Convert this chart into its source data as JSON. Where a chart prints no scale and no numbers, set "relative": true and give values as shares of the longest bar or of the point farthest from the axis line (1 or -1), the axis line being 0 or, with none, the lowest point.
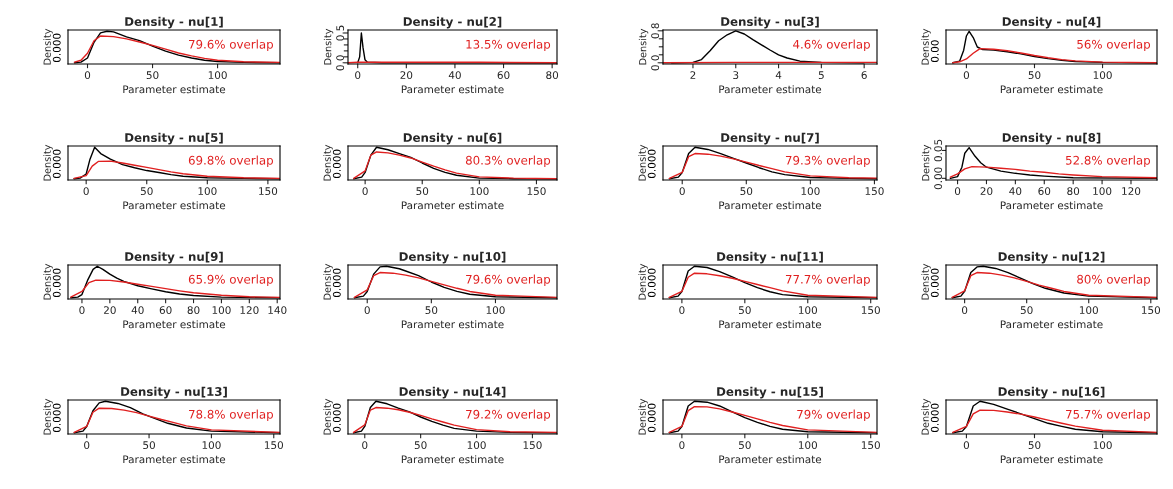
{
  "chart_data": [
    {
      "type": "line",
      "title": "Density - nu[1]",
      "xlabel": "Parameter estimate",
      "ylabel": "Density",
      "relative": true,
      "xlim": [
        -15,
        148
      ],
      "xticks": [
        0,
        50,
        100
      ],
      "annotations": [
        "0.000",
        "79.6% overlap"
      ],
      "series": [
        {
          "color": "#000000",
          "x": [
            -10,
            -5,
            0,
            5,
            10,
            15,
            20,
            25,
            30,
            40,
            50,
            60,
            70,
            80,
            90,
            100,
            120,
            148
          ],
          "values": [
            0,
            0.02,
            0.15,
            0.65,
            0.95,
            1.0,
            0.98,
            0.9,
            0.82,
            0.7,
            0.53,
            0.37,
            0.24,
            0.15,
            0.08,
            0.04,
            0.01,
            0
          ]
        },
        {
          "color": "#e02020",
          "x": [
            -10,
            -5,
            0,
            5,
            10,
            20,
            30,
            40,
            50,
            60,
            70,
            80,
            90,
            100,
            120,
            148
          ],
          "values": [
            0.02,
            0.08,
            0.3,
            0.7,
            0.85,
            0.83,
            0.76,
            0.66,
            0.55,
            0.43,
            0.31,
            0.22,
            0.14,
            0.08,
            0.03,
            0.01
          ]
        }
      ]
    },
    {
      "type": "line",
      "title": "Density - nu[2]",
      "xlabel": "Parameter estimate",
      "ylabel": "Density",
      "xlim": [
        -4,
        82
      ],
      "xticks": [
        0,
        20,
        40,
        60,
        80
      ],
      "ylim": [
        -0.02,
        0.55
      ],
      "yticks": [
        {
          "value": 0,
          "label": "0.0"
        },
        {
          "value": 0.1,
          "label": null
        },
        {
          "value": 0.2,
          "label": null
        },
        {
          "value": 0.3,
          "label": null
        },
        {
          "value": 0.4,
          "label": null
        },
        {
          "value": 0.5,
          "label": "0.5"
        }
      ],
      "annotations": [
        "13.5% overlap"
      ],
      "series": [
        {
          "color": "#000000",
          "x": [
            0,
            0.8,
            1.5,
            2.2,
            3,
            4,
            10,
            82
          ],
          "values": [
            0,
            0.1,
            0.5,
            0.25,
            0.05,
            0.01,
            0,
            0
          ]
        },
        {
          "color": "#e02020",
          "x": [
            -4,
            0,
            10,
            30,
            50,
            82
          ],
          "values": [
            0.0,
            0.01,
            0.01,
            0.01,
            0.01,
            0.0
          ]
        }
      ]
    },
    {
      "type": "line",
      "title": "Density - nu[3]",
      "xlabel": "Parameter estimate",
      "ylabel": "Density",
      "xlim": [
        1.3,
        6.3
      ],
      "xticks": [
        2,
        3,
        4,
        5,
        6
      ],
      "ylim": [
        -0.03,
        0.82
      ],
      "yticks": [
        {
          "value": 0,
          "label": "0.0"
        },
        {
          "value": 0.2,
          "label": null
        },
        {
          "value": 0.4,
          "label": null
        },
        {
          "value": 0.6,
          "label": null
        },
        {
          "value": 0.8,
          "label": "0.8"
        }
      ],
      "annotations": [
        "4.6% overlap"
      ],
      "series": [
        {
          "color": "#000000",
          "x": [
            1.5,
            2,
            2.2,
            2.4,
            2.6,
            2.8,
            3.0,
            3.2,
            3.4,
            3.6,
            3.8,
            4.0,
            4.2,
            4.5,
            5,
            6
          ],
          "values": [
            0,
            0.01,
            0.08,
            0.3,
            0.55,
            0.7,
            0.8,
            0.72,
            0.58,
            0.45,
            0.32,
            0.2,
            0.12,
            0.04,
            0.01,
            0
          ]
        },
        {
          "color": "#e02020",
          "x": [
            1.3,
            3,
            4.5,
            6.3
          ],
          "values": [
            0.0,
            0.01,
            0.01,
            0.01
          ]
        }
      ]
    },
    {
      "type": "line",
      "title": "Density - nu[4]",
      "xlabel": "Parameter estimate",
      "ylabel": "Density",
      "relative": true,
      "xlim": [
        -15,
        140
      ],
      "xticks": [
        0,
        50,
        100
      ],
      "annotations": [
        "0.00",
        "56% overlap"
      ],
      "series": [
        {
          "color": "#000000",
          "x": [
            -10,
            -5,
            -2,
            0,
            2,
            5,
            8,
            12,
            20,
            30,
            40,
            50,
            60,
            70,
            80,
            100,
            140
          ],
          "values": [
            0,
            0.05,
            0.4,
            0.85,
            1.0,
            0.8,
            0.5,
            0.42,
            0.4,
            0.35,
            0.28,
            0.2,
            0.13,
            0.08,
            0.04,
            0.01,
            0
          ]
        },
        {
          "color": "#e02020",
          "x": [
            -10,
            -5,
            0,
            5,
            10,
            20,
            30,
            40,
            50,
            60,
            70,
            80,
            100,
            140
          ],
          "values": [
            0,
            0.03,
            0.12,
            0.3,
            0.45,
            0.43,
            0.38,
            0.31,
            0.23,
            0.16,
            0.1,
            0.06,
            0.02,
            0
          ]
        }
      ]
    },
    {
      "type": "line",
      "title": "Density - nu[5]",
      "xlabel": "Parameter estimate",
      "ylabel": "Density",
      "relative": true,
      "xlim": [
        -15,
        160
      ],
      "xticks": [
        0,
        50,
        100,
        150
      ],
      "annotations": [
        "0.000",
        "69.8% overlap"
      ],
      "series": [
        {
          "color": "#000000",
          "x": [
            -10,
            -5,
            0,
            3,
            7,
            12,
            20,
            30,
            40,
            50,
            60,
            70,
            80,
            100,
            130,
            160
          ],
          "values": [
            0,
            0.02,
            0.15,
            0.6,
            1.0,
            0.8,
            0.62,
            0.45,
            0.35,
            0.26,
            0.2,
            0.13,
            0.08,
            0.03,
            0.01,
            0
          ]
        },
        {
          "color": "#e02020",
          "x": [
            -10,
            0,
            5,
            10,
            20,
            30,
            40,
            50,
            60,
            70,
            80,
            100,
            130,
            160
          ],
          "values": [
            0.01,
            0.1,
            0.4,
            0.55,
            0.56,
            0.5,
            0.43,
            0.36,
            0.29,
            0.22,
            0.16,
            0.08,
            0.03,
            0.01
          ]
        }
      ]
    },
    {
      "type": "line",
      "title": "Density - nu[6]",
      "xlabel": "Parameter estimate",
      "ylabel": "Density",
      "relative": true,
      "xlim": [
        -15,
        168
      ],
      "xticks": [
        0,
        50,
        100,
        150
      ],
      "annotations": [
        "0.000",
        "80.3% overlap"
      ],
      "series": [
        {
          "color": "#000000",
          "x": [
            -10,
            -3,
            0,
            5,
            10,
            20,
            30,
            40,
            50,
            60,
            70,
            80,
            100,
            130,
            168
          ],
          "values": [
            0,
            0.05,
            0.2,
            0.75,
            1.0,
            0.92,
            0.8,
            0.68,
            0.5,
            0.33,
            0.2,
            0.11,
            0.02,
            0,
            0
          ]
        },
        {
          "color": "#e02020",
          "x": [
            -10,
            0,
            5,
            10,
            20,
            30,
            40,
            50,
            60,
            70,
            80,
            100,
            130,
            168
          ],
          "values": [
            0.01,
            0.25,
            0.75,
            0.85,
            0.82,
            0.75,
            0.66,
            0.53,
            0.4,
            0.28,
            0.18,
            0.06,
            0.02,
            0
          ]
        }
      ]
    },
    {
      "type": "line",
      "title": "Density - nu[7]",
      "xlabel": "Parameter estimate",
      "ylabel": "Density",
      "relative": true,
      "xlim": [
        -15,
        152
      ],
      "xticks": [
        0,
        50,
        100,
        150
      ],
      "annotations": [
        "0.000",
        "79.3% overlap"
      ],
      "series": [
        {
          "color": "#000000",
          "x": [
            -10,
            -3,
            0,
            5,
            10,
            20,
            30,
            40,
            50,
            60,
            70,
            80,
            100,
            130,
            152
          ],
          "values": [
            0,
            0.05,
            0.2,
            0.8,
            1.0,
            0.93,
            0.8,
            0.65,
            0.5,
            0.35,
            0.22,
            0.13,
            0.04,
            0.01,
            0
          ]
        },
        {
          "color": "#e02020",
          "x": [
            -10,
            0,
            5,
            10,
            20,
            30,
            40,
            50,
            60,
            70,
            80,
            100,
            130,
            152
          ],
          "values": [
            0.01,
            0.2,
            0.7,
            0.8,
            0.78,
            0.72,
            0.63,
            0.53,
            0.42,
            0.32,
            0.22,
            0.09,
            0.03,
            0.02
          ]
        }
      ]
    },
    {
      "type": "line",
      "title": "Density - nu[8]",
      "xlabel": "Parameter estimate",
      "ylabel": "Density",
      "xlim": [
        -8,
        138
      ],
      "xticks": [
        0,
        20,
        40,
        60,
        80,
        100,
        120
      ],
      "ylim": [
        -0.003,
        0.058
      ],
      "yticks": [
        {
          "value": 0,
          "label": "0.00"
        },
        {
          "value": 0.05,
          "label": "0.05"
        }
      ],
      "annotations": [
        "52.8% overlap"
      ],
      "series": [
        {
          "color": "#000000",
          "x": [
            -5,
            0,
            3,
            5,
            8,
            12,
            16,
            20,
            30,
            40,
            50,
            60,
            80,
            138
          ],
          "values": [
            0,
            0.003,
            0.02,
            0.045,
            0.055,
            0.04,
            0.028,
            0.02,
            0.013,
            0.009,
            0.006,
            0.004,
            0.001,
            0
          ]
        },
        {
          "color": "#e02020",
          "x": [
            -5,
            0,
            5,
            10,
            20,
            30,
            40,
            50,
            60,
            70,
            80,
            100,
            138
          ],
          "values": [
            0.002,
            0.008,
            0.017,
            0.021,
            0.02,
            0.018,
            0.016,
            0.013,
            0.011,
            0.008,
            0.006,
            0.003,
            0.001
          ]
        }
      ]
    },
    {
      "type": "line",
      "title": "Density - nu[9]",
      "xlabel": "Parameter estimate",
      "ylabel": "Density",
      "relative": true,
      "xlim": [
        -10,
        142
      ],
      "xticks": [
        0,
        20,
        40,
        60,
        80,
        100,
        120,
        140
      ],
      "annotations": [
        "0.000",
        "65.9% overlap"
      ],
      "series": [
        {
          "color": "#000000",
          "x": [
            -8,
            -3,
            0,
            4,
            8,
            11,
            15,
            20,
            25,
            30,
            40,
            50,
            60,
            70,
            80,
            100,
            142
          ],
          "values": [
            0,
            0.02,
            0.1,
            0.55,
            0.9,
            1.0,
            0.9,
            0.75,
            0.62,
            0.52,
            0.38,
            0.28,
            0.19,
            0.12,
            0.07,
            0.02,
            0
          ]
        },
        {
          "color": "#e02020",
          "x": [
            -8,
            0,
            5,
            10,
            20,
            30,
            40,
            50,
            60,
            70,
            80,
            100,
            120,
            142
          ],
          "values": [
            0.02,
            0.2,
            0.48,
            0.56,
            0.55,
            0.5,
            0.43,
            0.36,
            0.29,
            0.22,
            0.16,
            0.08,
            0.03,
            0.01
          ]
        }
      ]
    },
    {
      "type": "line",
      "title": "Density - nu[10]",
      "xlabel": "Parameter estimate",
      "ylabel": "Density",
      "relative": true,
      "xlim": [
        -15,
        148
      ],
      "xticks": [
        0,
        50,
        100
      ],
      "annotations": [
        "0.000",
        "79.6% overlap"
      ],
      "series": [
        {
          "color": "#000000",
          "x": [
            -10,
            -3,
            0,
            5,
            10,
            15,
            25,
            30,
            40,
            50,
            60,
            70,
            80,
            100,
            148
          ],
          "values": [
            0,
            0.05,
            0.2,
            0.75,
            0.98,
            1.0,
            0.92,
            0.85,
            0.7,
            0.5,
            0.33,
            0.2,
            0.11,
            0.03,
            0
          ]
        },
        {
          "color": "#e02020",
          "x": [
            -10,
            0,
            5,
            10,
            20,
            30,
            40,
            50,
            60,
            70,
            80,
            100,
            148
          ],
          "values": [
            0.01,
            0.25,
            0.7,
            0.8,
            0.78,
            0.72,
            0.63,
            0.52,
            0.41,
            0.3,
            0.2,
            0.08,
            0.01
          ]
        }
      ]
    },
    {
      "type": "line",
      "title": "Density - nu[11]",
      "xlabel": "Parameter estimate",
      "ylabel": "Density",
      "relative": true,
      "xlim": [
        -15,
        155
      ],
      "xticks": [
        0,
        50,
        100,
        150
      ],
      "annotations": [
        "0.000",
        "77.7% overlap"
      ],
      "series": [
        {
          "color": "#000000",
          "x": [
            -10,
            -3,
            0,
            5,
            10,
            20,
            30,
            40,
            50,
            60,
            70,
            80,
            100,
            155
          ],
          "values": [
            0,
            0.05,
            0.2,
            0.85,
            1.0,
            0.96,
            0.83,
            0.66,
            0.48,
            0.32,
            0.19,
            0.1,
            0.03,
            0
          ]
        },
        {
          "color": "#e02020",
          "x": [
            -10,
            0,
            5,
            10,
            20,
            30,
            40,
            50,
            60,
            70,
            80,
            100,
            155
          ],
          "values": [
            0.01,
            0.2,
            0.65,
            0.78,
            0.76,
            0.7,
            0.62,
            0.52,
            0.42,
            0.32,
            0.22,
            0.08,
            0.01
          ]
        }
      ]
    },
    {
      "type": "line",
      "title": "Density - nu[12]",
      "xlabel": "Parameter estimate",
      "ylabel": "Density",
      "relative": true,
      "xlim": [
        -15,
        155
      ],
      "xticks": [
        0,
        50,
        100,
        150
      ],
      "annotations": [
        "0.000",
        "80% overlap"
      ],
      "series": [
        {
          "color": "#000000",
          "x": [
            -10,
            -3,
            0,
            5,
            10,
            15,
            25,
            35,
            45,
            55,
            65,
            80,
            100,
            155
          ],
          "values": [
            0,
            0.05,
            0.2,
            0.8,
            0.98,
            1.0,
            0.93,
            0.8,
            0.62,
            0.45,
            0.3,
            0.15,
            0.05,
            0
          ]
        },
        {
          "color": "#e02020",
          "x": [
            -10,
            0,
            5,
            10,
            20,
            30,
            40,
            50,
            60,
            70,
            80,
            100,
            155
          ],
          "values": [
            0.01,
            0.22,
            0.7,
            0.8,
            0.78,
            0.72,
            0.63,
            0.52,
            0.4,
            0.3,
            0.2,
            0.08,
            0.01
          ]
        }
      ]
    },
    {
      "type": "line",
      "title": "Density - nu[13]",
      "xlabel": "Parameter estimate",
      "ylabel": "Density",
      "relative": true,
      "xlim": [
        -15,
        155
      ],
      "xticks": [
        0,
        50,
        100,
        150
      ],
      "annotations": [
        "0.000",
        "78.8% overlap"
      ],
      "series": [
        {
          "color": "#000000",
          "x": [
            -10,
            -3,
            0,
            5,
            10,
            15,
            25,
            35,
            45,
            55,
            65,
            80,
            100,
            155
          ],
          "values": [
            0,
            0.05,
            0.2,
            0.7,
            0.95,
            1.0,
            0.93,
            0.8,
            0.6,
            0.45,
            0.3,
            0.15,
            0.05,
            0
          ]
        },
        {
          "color": "#e02020",
          "x": [
            -10,
            0,
            5,
            10,
            20,
            30,
            40,
            50,
            60,
            70,
            80,
            100,
            155
          ],
          "values": [
            0.01,
            0.2,
            0.65,
            0.78,
            0.77,
            0.72,
            0.64,
            0.53,
            0.42,
            0.32,
            0.22,
            0.09,
            0.01
          ]
        }
      ]
    },
    {
      "type": "line",
      "title": "Density - nu[14]",
      "xlabel": "Parameter estimate",
      "ylabel": "Density",
      "relative": true,
      "xlim": [
        -15,
        172
      ],
      "xticks": [
        0,
        50,
        100,
        150
      ],
      "annotations": [
        "0.000",
        "79.2% overlap"
      ],
      "series": [
        {
          "color": "#000000",
          "x": [
            -10,
            -3,
            0,
            5,
            10,
            20,
            30,
            40,
            50,
            60,
            70,
            80,
            100,
            130,
            172
          ],
          "values": [
            0,
            0.05,
            0.2,
            0.8,
            1.0,
            0.92,
            0.78,
            0.66,
            0.5,
            0.36,
            0.24,
            0.14,
            0.05,
            0.01,
            0
          ]
        },
        {
          "color": "#e02020",
          "x": [
            -10,
            0,
            5,
            10,
            20,
            30,
            40,
            50,
            60,
            70,
            80,
            100,
            130,
            172
          ],
          "values": [
            0.01,
            0.25,
            0.72,
            0.8,
            0.78,
            0.73,
            0.65,
            0.55,
            0.44,
            0.34,
            0.24,
            0.1,
            0.03,
            0.01
          ]
        }
      ]
    },
    {
      "type": "line",
      "title": "Density - nu[15]",
      "xlabel": "Parameter estimate",
      "ylabel": "Density",
      "relative": true,
      "xlim": [
        -15,
        155
      ],
      "xticks": [
        0,
        50,
        100,
        150
      ],
      "annotations": [
        "0.000",
        "79% overlap"
      ],
      "series": [
        {
          "color": "#000000",
          "x": [
            -10,
            -3,
            0,
            5,
            10,
            20,
            30,
            40,
            50,
            60,
            70,
            80,
            100,
            155
          ],
          "values": [
            0,
            0.05,
            0.2,
            0.85,
            1.0,
            0.97,
            0.85,
            0.66,
            0.48,
            0.33,
            0.2,
            0.11,
            0.03,
            0
          ]
        },
        {
          "color": "#e02020",
          "x": [
            -10,
            0,
            5,
            10,
            20,
            30,
            40,
            50,
            60,
            70,
            80,
            100,
            155
          ],
          "values": [
            0.01,
            0.2,
            0.7,
            0.83,
            0.82,
            0.76,
            0.66,
            0.55,
            0.44,
            0.33,
            0.23,
            0.09,
            0.01
          ]
        }
      ]
    },
    {
      "type": "line",
      "title": "Density - nu[16]",
      "xlabel": "Parameter estimate",
      "ylabel": "Density",
      "relative": true,
      "xlim": [
        -15,
        140
      ],
      "xticks": [
        0,
        50,
        100
      ],
      "annotations": [
        "0.000",
        "75.7% overlap"
      ],
      "series": [
        {
          "color": "#000000",
          "x": [
            -10,
            -3,
            0,
            5,
            10,
            20,
            30,
            40,
            50,
            60,
            70,
            80,
            100,
            140
          ],
          "values": [
            0,
            0.05,
            0.2,
            0.85,
            1.0,
            0.9,
            0.75,
            0.6,
            0.45,
            0.3,
            0.2,
            0.11,
            0.03,
            0
          ]
        },
        {
          "color": "#e02020",
          "x": [
            -10,
            0,
            5,
            10,
            20,
            30,
            40,
            50,
            60,
            70,
            80,
            100,
            140
          ],
          "values": [
            0.01,
            0.2,
            0.6,
            0.72,
            0.71,
            0.66,
            0.59,
            0.5,
            0.4,
            0.3,
            0.21,
            0.08,
            0.01
          ]
        }
      ]
    }
  ]
}
